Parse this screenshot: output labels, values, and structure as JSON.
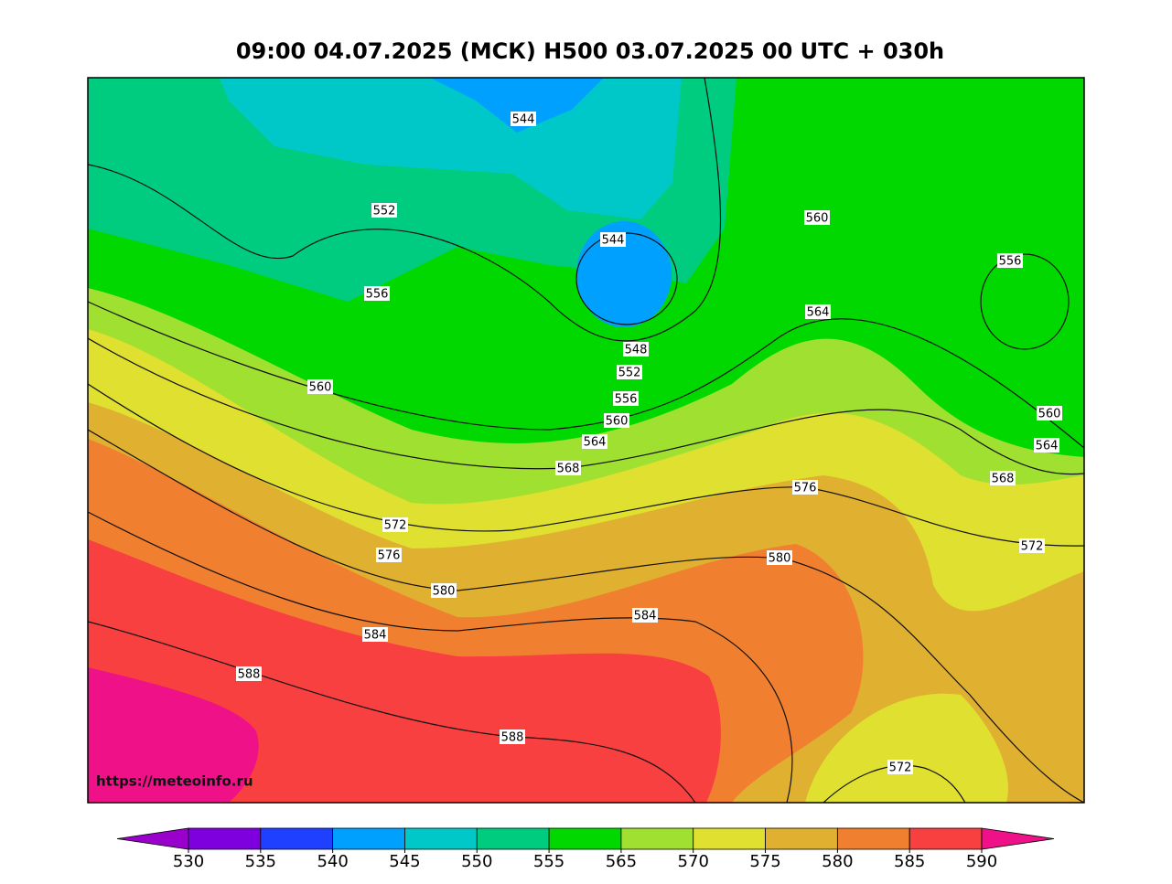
{
  "title": "09:00 04.07.2025 (МСК) H500  03.07.2025 00 UTC + 030h",
  "source_url": "https://meteoinfo.ru",
  "contour_labels": [
    544,
    552,
    544,
    556,
    560,
    556,
    564,
    548,
    552,
    556,
    560,
    560,
    564,
    568,
    560,
    564,
    568,
    576,
    572,
    576,
    580,
    572,
    580,
    584,
    584,
    588,
    588,
    572
  ],
  "colorbar": {
    "ticks": [
      530,
      535,
      540,
      545,
      550,
      555,
      565,
      570,
      575,
      580,
      585,
      590
    ],
    "colors": [
      "#9a00cc",
      "#7f00df",
      "#2040ff",
      "#00a0ff",
      "#00c8c8",
      "#00cc80",
      "#00d800",
      "#a0e030",
      "#e0e030",
      "#e0b030",
      "#f08030",
      "#f84040",
      "#ee1188"
    ]
  }
}
